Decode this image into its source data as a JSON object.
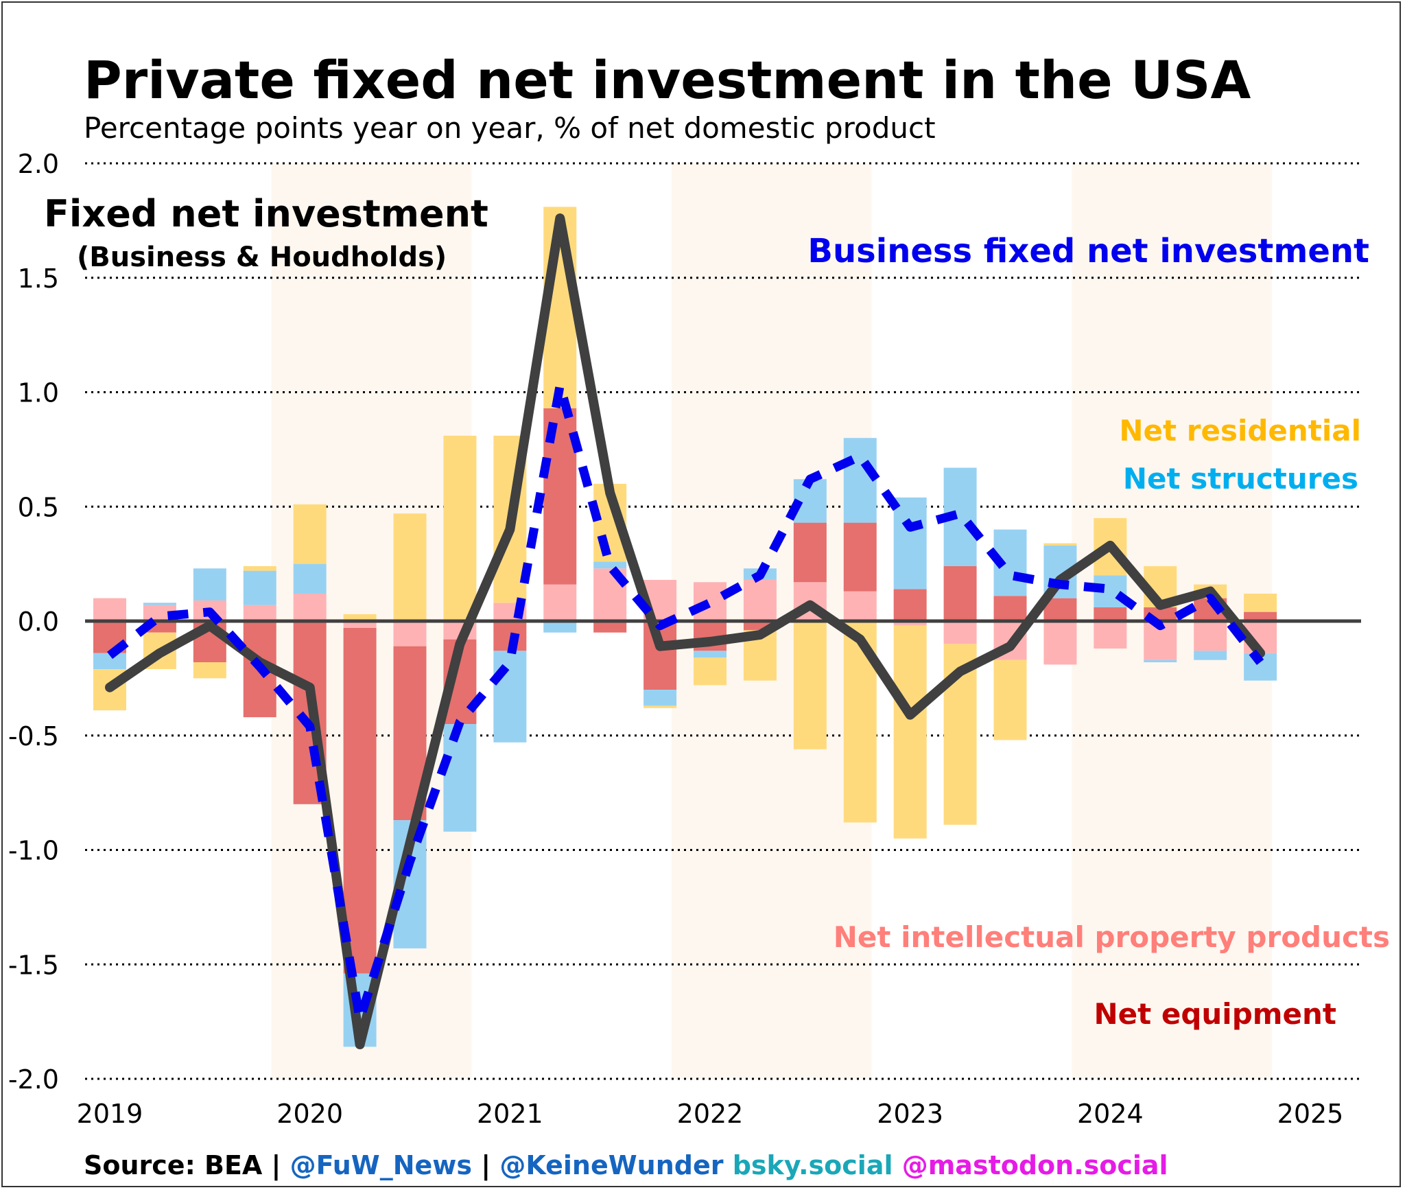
{
  "title": "Private fixed net investment in the USA",
  "subtitle": "Percentage points year on year, % of net domestic product",
  "annotations": {
    "fixed_title": "Fixed net investment",
    "fixed_sub": "(Business & Houdholds)",
    "business": "Business fixed net investment",
    "residential": "Net residential",
    "structures": "Net structures",
    "ipp": "Net intellectual property products",
    "equipment": "Net equipment"
  },
  "source": {
    "label": "Source: BEA",
    "sep1": " | ",
    "handle1": "@FuW_News",
    "sep2": " | ",
    "handle2": "@KeineWunder",
    "bsky": " bsky.social",
    "mastodon": " @mastodon.social"
  },
  "colors": {
    "residential": "#FFDA7D",
    "structures": "#97D1F2",
    "ipp": "#FFB2B4",
    "equipment": "#E5706E",
    "fixed_line": "#404040",
    "business_line": "#0000EE",
    "shade": "#FDF7F0",
    "annot_fixed": "#000000",
    "annot_business": "#0000EE",
    "annot_residential": "#FFB800",
    "annot_structures": "#00AEEF",
    "annot_ipp": "#FF7F7A",
    "annot_equipment": "#C00000",
    "src_handle": "#1565C0",
    "src_bsky": "#1AA7B8",
    "src_mastodon": "#E61BE6"
  },
  "chart_data": {
    "type": "bar",
    "stacked": true,
    "ylim": [
      -2.0,
      2.0
    ],
    "yticks": [
      "2.0",
      "1.5",
      "1.0",
      "0.5",
      "0.0",
      "-0.5",
      "-1.0",
      "-1.5",
      "-2.0"
    ],
    "ytick_values": [
      2.0,
      1.5,
      1.0,
      0.5,
      0.0,
      -0.5,
      -1.0,
      -1.5,
      -2.0
    ],
    "xlim": [
      2019.0,
      2025.0
    ],
    "xticks": [
      "2019",
      "2020",
      "2021",
      "2022",
      "2023",
      "2024",
      "2025"
    ],
    "xtick_values": [
      2019,
      2020,
      2021,
      2022,
      2023,
      2024,
      2025
    ],
    "shaded_years": [
      2020,
      2022,
      2024
    ],
    "x": [
      2019.0,
      2019.25,
      2019.5,
      2019.75,
      2020.0,
      2020.25,
      2020.5,
      2020.75,
      2021.0,
      2021.25,
      2021.5,
      2021.75,
      2022.0,
      2022.25,
      2022.5,
      2022.75,
      2023.0,
      2023.25,
      2023.5,
      2023.75,
      2024.0,
      2024.25,
      2024.5,
      2024.75
    ],
    "series": [
      {
        "name": "Net intellectual property products",
        "key": "ipp",
        "values": [
          0.1,
          0.07,
          0.09,
          0.07,
          0.12,
          -0.03,
          -0.11,
          -0.08,
          0.08,
          0.16,
          0.23,
          0.18,
          0.17,
          0.18,
          0.17,
          0.13,
          -0.02,
          -0.1,
          -0.17,
          -0.19,
          -0.12,
          -0.17,
          -0.13,
          -0.14
        ]
      },
      {
        "name": "Net equipment",
        "key": "equipment",
        "values": [
          -0.14,
          -0.05,
          -0.18,
          -0.42,
          -0.8,
          -1.51,
          -0.76,
          -0.37,
          -0.13,
          0.77,
          -0.05,
          -0.3,
          -0.13,
          -0.04,
          0.26,
          0.3,
          0.14,
          0.24,
          0.11,
          0.1,
          0.06,
          0.06,
          0.1,
          0.04
        ]
      },
      {
        "name": "Net structures",
        "key": "structures",
        "values": [
          -0.07,
          0.01,
          0.14,
          0.15,
          0.13,
          -0.32,
          -0.56,
          -0.47,
          -0.4,
          -0.05,
          0.03,
          -0.07,
          -0.03,
          0.05,
          0.19,
          0.37,
          0.4,
          0.43,
          0.29,
          0.23,
          0.14,
          -0.01,
          -0.04,
          -0.12
        ]
      },
      {
        "name": "Net residential",
        "key": "residential",
        "values": [
          -0.18,
          -0.16,
          -0.07,
          0.02,
          0.26,
          0.03,
          0.47,
          0.81,
          0.73,
          0.88,
          0.34,
          -0.01,
          -0.12,
          -0.22,
          -0.56,
          -0.88,
          -0.93,
          -0.79,
          -0.35,
          0.01,
          0.25,
          0.18,
          0.06,
          0.08
        ]
      },
      {
        "name": "Fixed net investment (Business & Houdholds)",
        "key": "fixed",
        "kind": "line",
        "values": [
          -0.29,
          -0.14,
          -0.02,
          -0.18,
          -0.29,
          -1.85,
          -0.97,
          -0.1,
          0.4,
          1.76,
          0.56,
          -0.11,
          -0.09,
          -0.06,
          0.07,
          -0.08,
          -0.41,
          -0.22,
          -0.11,
          0.18,
          0.33,
          0.07,
          0.13,
          -0.14
        ]
      },
      {
        "name": "Business fixed net investment",
        "key": "business",
        "kind": "line",
        "values": [
          -0.15,
          0.02,
          0.04,
          -0.2,
          -0.46,
          -1.74,
          -1.05,
          -0.44,
          -0.18,
          1.03,
          0.24,
          -0.02,
          0.08,
          0.2,
          0.62,
          0.72,
          0.41,
          0.47,
          0.2,
          0.16,
          0.14,
          -0.02,
          0.1,
          -0.18
        ]
      }
    ]
  }
}
